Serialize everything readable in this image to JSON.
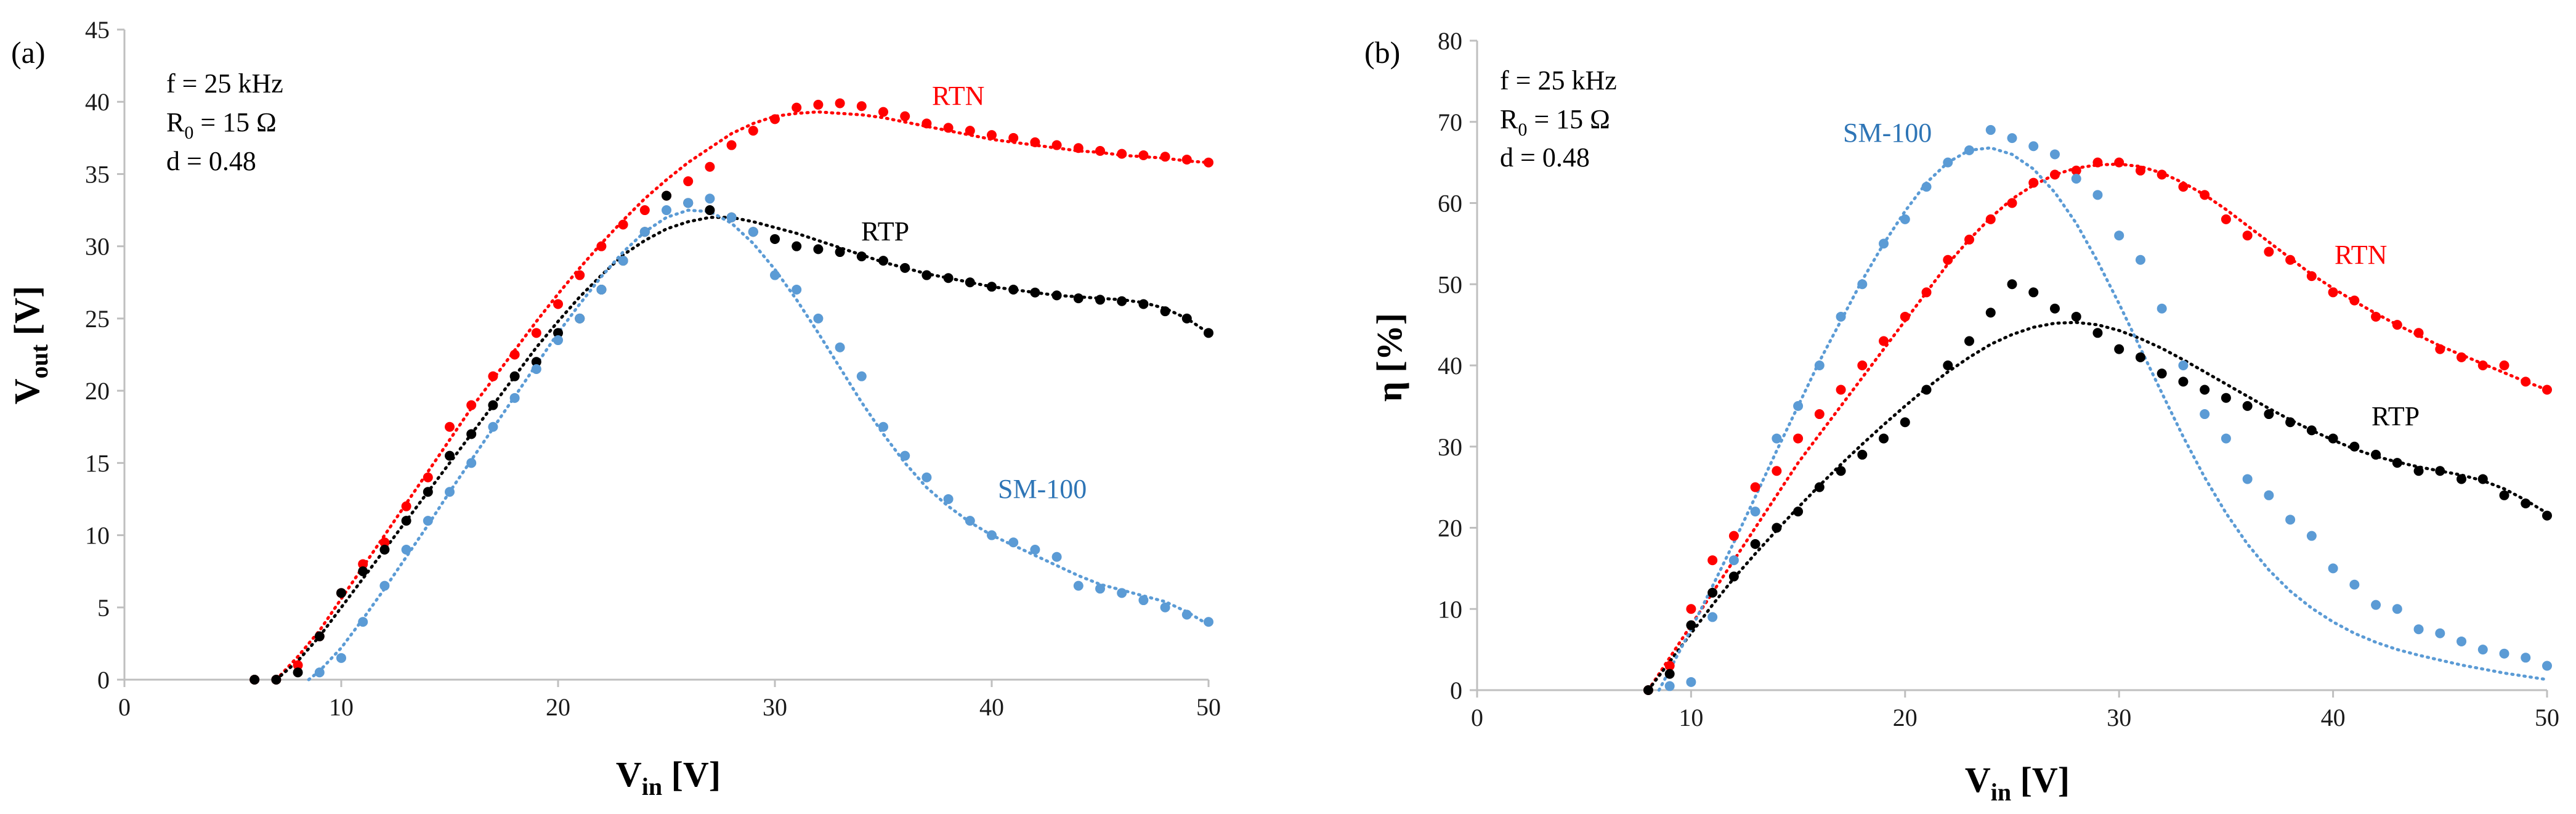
{
  "chart_data": [
    {
      "type": "scatter",
      "panel_label": "(a)",
      "xlabel": {
        "main": "V",
        "sub": "in",
        "unit": " [V]"
      },
      "ylabel": {
        "main": "V",
        "sub": "out",
        "unit": " [V]"
      },
      "xlim": [
        0,
        50
      ],
      "ylim": [
        0,
        45
      ],
      "xticks": [
        0,
        10,
        20,
        30,
        40,
        50
      ],
      "yticks": [
        0,
        5,
        10,
        15,
        20,
        25,
        30,
        35,
        40,
        45
      ],
      "annotation": {
        "freq": "f = 25 kHz",
        "r_main": "R",
        "r_sub": "0",
        "r_rest": " = 15 Ω",
        "duty": "d = 0.48"
      },
      "series": [
        {
          "name": "RTN",
          "color": "#ff0000",
          "x": [
            6,
            7,
            8,
            9,
            10,
            11,
            12,
            13,
            14,
            15,
            16,
            17,
            18,
            19,
            20,
            21,
            22,
            23,
            24,
            25,
            26,
            27,
            28,
            29,
            30,
            31,
            32,
            33,
            34,
            35,
            36,
            37,
            38,
            39,
            40,
            41,
            42,
            43,
            44,
            45,
            46,
            47,
            48,
            49,
            50
          ],
          "y": [
            0,
            0,
            1,
            3,
            6,
            8,
            9.5,
            12,
            14,
            17.5,
            19,
            21,
            22.5,
            24,
            26,
            28,
            30,
            31.5,
            32.5,
            33.5,
            34.5,
            35.5,
            37,
            38,
            38.8,
            39.6,
            39.8,
            39.9,
            39.7,
            39.3,
            39,
            38.5,
            38.2,
            38,
            37.7,
            37.5,
            37.2,
            37,
            36.8,
            36.6,
            36.4,
            36.3,
            36.2,
            36,
            35.8
          ],
          "fit_x": [
            7,
            8,
            9,
            10,
            11,
            12,
            13,
            14,
            15,
            16,
            17,
            18,
            19,
            20,
            21,
            22,
            23,
            24,
            25,
            26,
            27,
            28,
            29,
            30,
            31,
            32,
            33,
            34,
            35,
            36,
            37,
            38,
            39,
            40,
            41,
            42,
            43,
            44,
            45,
            46,
            47,
            48,
            49,
            50
          ],
          "fit_y": [
            0,
            1.6,
            3.4,
            5.6,
            7.8,
            10,
            12.2,
            14.4,
            16.6,
            18.8,
            20.8,
            22.8,
            24.8,
            26.7,
            28.5,
            30.2,
            31.8,
            33.3,
            34.6,
            35.8,
            36.8,
            37.8,
            38.5,
            39,
            39.2,
            39.3,
            39.2,
            39.1,
            38.9,
            38.6,
            38.3,
            38,
            37.7,
            37.4,
            37.2,
            37,
            36.8,
            36.6,
            36.5,
            36.3,
            36.2,
            36.1,
            35.9,
            35.8
          ]
        },
        {
          "name": "RTP",
          "color": "#000000",
          "x": [
            6,
            7,
            8,
            9,
            10,
            11,
            12,
            13,
            14,
            15,
            16,
            17,
            18,
            19,
            20,
            21,
            22,
            23,
            24,
            25,
            26,
            27,
            28,
            29,
            30,
            31,
            32,
            33,
            34,
            35,
            36,
            37,
            38,
            39,
            40,
            41,
            42,
            43,
            44,
            45,
            46,
            47,
            48,
            49,
            50
          ],
          "y": [
            0,
            0,
            0.5,
            3,
            6,
            7.5,
            9,
            11,
            13,
            15.5,
            17,
            19,
            21,
            22,
            24,
            25,
            27,
            29,
            31,
            33.5,
            33,
            32.5,
            32,
            31,
            30.5,
            30,
            29.8,
            29.6,
            29.3,
            29,
            28.5,
            28,
            27.8,
            27.5,
            27.2,
            27,
            26.8,
            26.6,
            26.4,
            26.3,
            26.2,
            26,
            25.5,
            25,
            24
          ],
          "fit_x": [
            7,
            8,
            9,
            10,
            11,
            12,
            13,
            14,
            15,
            16,
            17,
            18,
            19,
            20,
            21,
            22,
            23,
            24,
            25,
            26,
            27,
            28,
            29,
            30,
            31,
            32,
            33,
            34,
            35,
            36,
            37,
            38,
            39,
            40,
            41,
            42,
            43,
            44,
            45,
            46,
            47,
            48,
            49,
            50
          ],
          "fit_y": [
            0,
            1.3,
            3,
            5,
            7,
            9,
            11,
            13,
            15,
            17,
            19,
            21,
            23,
            24.8,
            26.5,
            28,
            29.4,
            30.4,
            31.2,
            31.7,
            32,
            32,
            31.7,
            31.3,
            30.9,
            30.4,
            29.9,
            29.4,
            28.9,
            28.5,
            28.1,
            27.8,
            27.5,
            27.2,
            27,
            26.8,
            26.6,
            26.5,
            26.4,
            26.3,
            26.1,
            25.7,
            25,
            24
          ]
        },
        {
          "name": "SM-100",
          "color": "#5b9bd5",
          "x": [
            9,
            10,
            11,
            12,
            13,
            14,
            15,
            16,
            17,
            18,
            19,
            20,
            21,
            22,
            23,
            24,
            25,
            26,
            27,
            28,
            29,
            30,
            31,
            32,
            33,
            34,
            35,
            36,
            37,
            38,
            39,
            40,
            41,
            42,
            43,
            44,
            45,
            46,
            47,
            48,
            49,
            50
          ],
          "y": [
            0.5,
            1.5,
            4,
            6.5,
            9,
            11,
            13,
            15,
            17.5,
            19.5,
            21.5,
            23.5,
            25,
            27,
            29,
            31,
            32.5,
            33,
            33.3,
            32,
            31,
            28,
            27,
            25,
            23,
            21,
            17.5,
            15.5,
            14,
            12.5,
            11,
            10,
            9.5,
            9,
            8.5,
            6.5,
            6.3,
            6,
            5.5,
            5,
            4.5,
            4
          ],
          "fit_x": [
            8.5,
            9,
            10,
            11,
            12,
            13,
            14,
            15,
            16,
            17,
            18,
            19,
            20,
            21,
            22,
            23,
            24,
            25,
            26,
            27,
            28,
            29,
            30,
            31,
            32,
            33,
            34,
            35,
            36,
            37,
            38,
            39,
            40,
            41,
            42,
            43,
            44,
            45,
            46,
            47,
            48,
            49,
            50
          ],
          "fit_y": [
            0,
            0.6,
            2.2,
            4.2,
            6.3,
            8.5,
            10.7,
            13,
            15.2,
            17.4,
            19.6,
            21.8,
            24,
            26,
            27.9,
            29.6,
            31,
            32,
            32.5,
            32.4,
            31.6,
            30.2,
            28.4,
            26.3,
            24,
            21.6,
            19.2,
            17,
            15,
            13.3,
            12,
            10.9,
            10,
            9.3,
            8.6,
            7.9,
            7.2,
            6.6,
            6.2,
            5.8,
            5.4,
            4.7,
            3.8
          ]
        }
      ],
      "labels": {
        "RTN": "RTN",
        "RTP": "RTP",
        "SM100": "SM-100"
      }
    },
    {
      "type": "scatter",
      "panel_label": "(b)",
      "xlabel": {
        "main": "V",
        "sub": "in",
        "unit": " [V]"
      },
      "ylabel": {
        "main": "η [%]"
      },
      "xlim": [
        0,
        50
      ],
      "ylim": [
        0,
        80
      ],
      "xticks": [
        0,
        10,
        20,
        30,
        40,
        50
      ],
      "yticks": [
        0,
        10,
        20,
        30,
        40,
        50,
        60,
        70,
        80
      ],
      "annotation": {
        "freq": "f = 25 kHz",
        "r_main": "R",
        "r_sub": "0",
        "r_rest": " = 15 Ω",
        "duty": "d = 0.48"
      },
      "series": [
        {
          "name": "RTN",
          "color": "#ff0000",
          "x": [
            8,
            9,
            10,
            11,
            12,
            13,
            14,
            15,
            16,
            17,
            18,
            19,
            20,
            21,
            22,
            23,
            24,
            25,
            26,
            27,
            28,
            29,
            30,
            31,
            32,
            33,
            34,
            35,
            36,
            37,
            38,
            39,
            40,
            41,
            42,
            43,
            44,
            45,
            46,
            47,
            48,
            49,
            50
          ],
          "y": [
            0,
            3,
            10,
            16,
            19,
            25,
            27,
            31,
            34,
            37,
            40,
            43,
            46,
            49,
            53,
            55.5,
            58,
            60,
            62.5,
            63.5,
            64,
            65,
            65,
            64,
            63.5,
            62,
            61,
            58,
            56,
            54,
            53,
            51,
            49,
            48,
            46,
            45,
            44,
            42,
            41,
            40,
            40,
            38,
            37
          ],
          "fit_x": [
            8,
            9,
            10,
            11,
            12,
            13,
            14,
            15,
            16,
            17,
            18,
            19,
            20,
            21,
            22,
            23,
            24,
            25,
            26,
            27,
            28,
            29,
            30,
            31,
            32,
            33,
            34,
            35,
            36,
            37,
            38,
            39,
            40,
            41,
            42,
            43,
            44,
            45,
            46,
            47,
            48,
            49,
            50
          ],
          "fit_y": [
            0,
            4,
            8,
            12,
            16,
            20,
            24,
            28,
            31.5,
            35,
            38.5,
            42,
            45.5,
            49,
            52.5,
            55.5,
            58.2,
            60.5,
            62.2,
            63.5,
            64.3,
            64.7,
            64.8,
            64.5,
            63.7,
            62.5,
            61,
            59.2,
            57.2,
            55.2,
            53.2,
            51.2,
            49.5,
            47.9,
            46.4,
            45,
            43.7,
            42.4,
            41.3,
            40.2,
            39.1,
            38,
            37
          ]
        },
        {
          "name": "RTP",
          "color": "#000000",
          "x": [
            8,
            9,
            10,
            11,
            12,
            13,
            14,
            15,
            16,
            17,
            18,
            19,
            20,
            21,
            22,
            23,
            24,
            25,
            26,
            27,
            28,
            29,
            30,
            31,
            32,
            33,
            34,
            35,
            36,
            37,
            38,
            39,
            40,
            41,
            42,
            43,
            44,
            45,
            46,
            47,
            48,
            49,
            50
          ],
          "y": [
            0,
            2,
            8,
            12,
            14,
            18,
            20,
            22,
            25,
            27,
            29,
            31,
            33,
            37,
            40,
            43,
            46.5,
            50,
            49,
            47,
            46,
            44,
            42,
            41,
            39,
            38,
            37,
            36,
            35,
            34,
            33,
            32,
            31,
            30,
            29,
            28,
            27,
            27,
            26,
            26,
            24,
            23,
            21.5
          ],
          "fit_x": [
            8,
            9,
            10,
            11,
            12,
            13,
            14,
            15,
            16,
            17,
            18,
            19,
            20,
            21,
            22,
            23,
            24,
            25,
            26,
            27,
            28,
            29,
            30,
            31,
            32,
            33,
            34,
            35,
            36,
            37,
            38,
            39,
            40,
            41,
            42,
            43,
            44,
            45,
            46,
            47,
            48,
            49,
            50
          ],
          "fit_y": [
            0,
            3.5,
            7,
            10.5,
            13.8,
            16.8,
            19.7,
            22.5,
            25.2,
            27.8,
            30.3,
            32.7,
            35,
            37.2,
            39.2,
            41,
            42.6,
            43.8,
            44.7,
            45.2,
            45.3,
            45,
            44.3,
            43.3,
            42.1,
            40.7,
            39.2,
            37.7,
            36.2,
            34.7,
            33.3,
            32,
            30.8,
            29.7,
            28.8,
            28.1,
            27.5,
            27,
            26.5,
            25.8,
            24.8,
            23.4,
            21.8
          ]
        },
        {
          "name": "SM-100",
          "color": "#5b9bd5",
          "x": [
            9,
            10,
            11,
            12,
            13,
            14,
            15,
            16,
            17,
            18,
            19,
            20,
            21,
            22,
            23,
            24,
            25,
            26,
            27,
            28,
            29,
            30,
            31,
            32,
            33,
            34,
            35,
            36,
            37,
            38,
            39,
            40,
            41,
            42,
            43,
            44,
            45,
            46,
            47,
            48,
            49,
            50
          ],
          "y": [
            0.5,
            1,
            9,
            16,
            22,
            31,
            35,
            40,
            46,
            50,
            55,
            58,
            62,
            65,
            66.5,
            69,
            68,
            67,
            66,
            63,
            61,
            56,
            53,
            47,
            40,
            34,
            31,
            26,
            24,
            21,
            19,
            15,
            13,
            10.5,
            10,
            7.5,
            7,
            6,
            5,
            4.5,
            4,
            3
          ],
          "fit_x": [
            8.5,
            9,
            10,
            11,
            12,
            13,
            14,
            15,
            16,
            17,
            18,
            19,
            20,
            21,
            22,
            23,
            24,
            25,
            26,
            27,
            28,
            29,
            30,
            31,
            32,
            33,
            34,
            35,
            36,
            37,
            38,
            39,
            40,
            41,
            42,
            43,
            44,
            45,
            46,
            47,
            48,
            49,
            50
          ],
          "fit_y": [
            0,
            2.5,
            7.5,
            12.8,
            18.2,
            23.8,
            29.5,
            35,
            40.5,
            45.5,
            50.5,
            55,
            59,
            62.5,
            65,
            66.5,
            66.8,
            66,
            64.2,
            61.3,
            57.5,
            52.8,
            47.6,
            42.1,
            36.6,
            31.2,
            26.2,
            21.8,
            18,
            14.8,
            12.2,
            10.1,
            8.4,
            7,
            5.9,
            5,
            4.3,
            3.7,
            3.1,
            2.6,
            2.1,
            1.7,
            1.3
          ]
        }
      ],
      "labels": {
        "RTN": "RTN",
        "RTP": "RTP",
        "SM100": "SM-100"
      }
    }
  ]
}
